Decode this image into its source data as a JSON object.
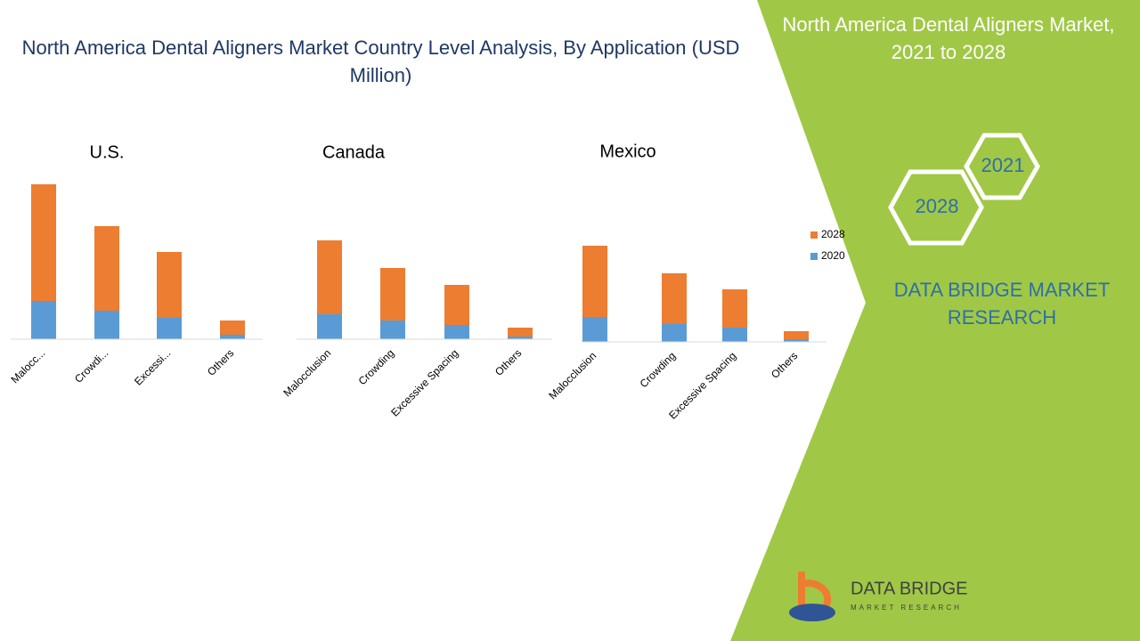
{
  "header": {
    "title": "North America Dental Aligners Market Country Level Analysis, By Application (USD Million)"
  },
  "sidebar": {
    "title": "North America Dental Aligners Market, 2021 to 2028",
    "hex": [
      "2021",
      "2028"
    ],
    "brand": "DATA BRIDGE MARKET RESEARCH"
  },
  "logo": {
    "name": "DATA BRIDGE",
    "tagline": "MARKET RESEARCH"
  },
  "chart_data": [
    {
      "type": "bar",
      "stacked": true,
      "title": "U.S.",
      "categories": [
        "Malocc...",
        "Crowdi...",
        "Excessi...",
        "Others"
      ],
      "ylim": [
        0,
        180
      ],
      "series": [
        {
          "color": "#5b9bd5",
          "values": [
            43,
            32,
            24,
            5
          ]
        },
        {
          "color": "#ed7d31",
          "values": [
            131,
            95,
            74,
            16
          ]
        }
      ]
    },
    {
      "type": "bar",
      "stacked": true,
      "title": "Canada",
      "categories": [
        "Malocclusion",
        "Crowding",
        "Excessive Spacing",
        "Others"
      ],
      "ylim": [
        0,
        180
      ],
      "series": [
        {
          "color": "#5b9bd5",
          "values": [
            28,
            21,
            16,
            3
          ]
        },
        {
          "color": "#ed7d31",
          "values": [
            83,
            59,
            45,
            10
          ]
        }
      ]
    },
    {
      "type": "bar",
      "stacked": true,
      "title": "Mexico",
      "categories": [
        "Malocclusion",
        "Crowding",
        "Excessive Spacing",
        "Others"
      ],
      "ylim": [
        0,
        180
      ],
      "series": [
        {
          "name": "2020",
          "color": "#5b9bd5",
          "values": [
            28,
            20,
            16,
            3
          ]
        },
        {
          "name": "2028",
          "color": "#ed7d31",
          "values": [
            80,
            57,
            43,
            9
          ]
        }
      ]
    }
  ]
}
